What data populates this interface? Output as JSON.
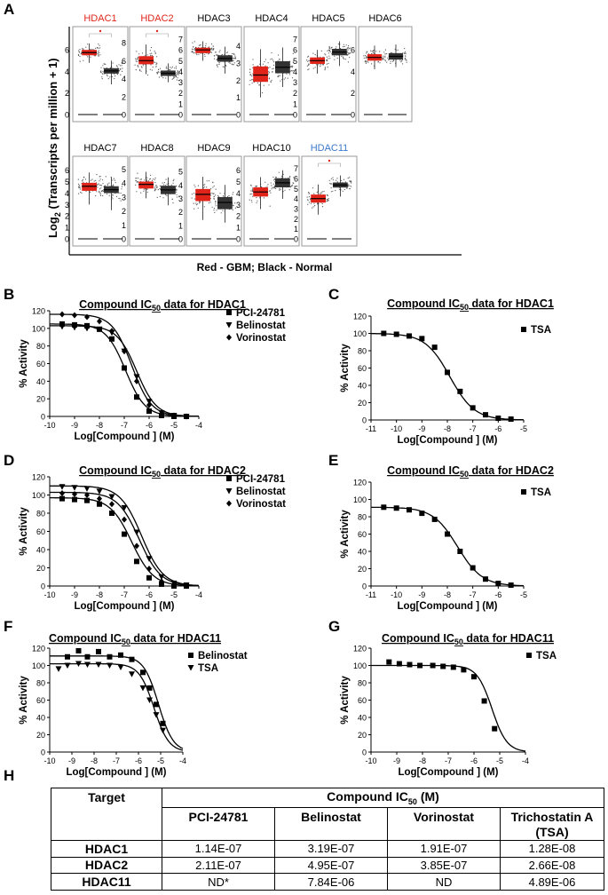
{
  "panel_letters": [
    "A",
    "B",
    "C",
    "D",
    "E",
    "F",
    "G",
    "H"
  ],
  "chart_data": [
    {
      "type": "box",
      "panel": "A",
      "ylabel_main": "Log",
      "ylabel_sub": "2",
      "ylabel_rest": " (Transcripts per million + 1)",
      "xlabel": "Red - GBM; Black - Normal",
      "series_colors": {
        "GBM": "#e0241a",
        "Normal": "#333333"
      },
      "genes": [
        {
          "name": "HDAC1",
          "label_color": "#e0241a",
          "significant": true,
          "ticks": [
            "6",
            "4",
            "2",
            "0"
          ],
          "ymax": 7.5,
          "gbm": {
            "q1": 5.5,
            "med": 5.75,
            "q3": 6.0,
            "wlo": 4.8,
            "whi": 6.6
          },
          "normal": {
            "q1": 3.8,
            "med": 4.05,
            "q3": 4.3,
            "wlo": 2.8,
            "whi": 5.0
          }
        },
        {
          "name": "HDAC2",
          "label_color": "#e0241a",
          "significant": true,
          "ticks": [
            "8",
            "6",
            "4",
            "2",
            "0"
          ],
          "ymax": 9.0,
          "gbm": {
            "q1": 5.6,
            "med": 6.0,
            "q3": 6.5,
            "wlo": 4.5,
            "whi": 7.8
          },
          "normal": {
            "q1": 4.3,
            "med": 4.6,
            "q3": 4.9,
            "wlo": 3.6,
            "whi": 5.7
          }
        },
        {
          "name": "HDAC3",
          "label_color": "#000000",
          "significant": false,
          "ticks": [
            "7",
            "6",
            "5",
            "4",
            "3",
            "2",
            "1",
            "0"
          ],
          "ymax": 7.5,
          "gbm": {
            "q1": 5.7,
            "med": 6.0,
            "q3": 6.2,
            "wlo": 5.0,
            "whi": 6.8
          },
          "normal": {
            "q1": 4.9,
            "med": 5.2,
            "q3": 5.5,
            "wlo": 3.8,
            "whi": 6.3
          }
        },
        {
          "name": "HDAC4",
          "label_color": "#000000",
          "significant": false,
          "ticks": [
            "4",
            "3",
            "2",
            "1",
            "0"
          ],
          "ymax": 4.7,
          "gbm": {
            "q1": 1.9,
            "med": 2.3,
            "q3": 2.8,
            "wlo": 1.0,
            "whi": 3.8
          },
          "normal": {
            "q1": 2.4,
            "med": 2.75,
            "q3": 3.1,
            "wlo": 1.6,
            "whi": 3.9
          }
        },
        {
          "name": "HDAC5",
          "label_color": "#000000",
          "significant": false,
          "ticks": [
            "7",
            "6",
            "5",
            "4",
            "3",
            "2",
            "1",
            "0"
          ],
          "ymax": 7.5,
          "gbm": {
            "q1": 4.7,
            "med": 5.0,
            "q3": 5.3,
            "wlo": 3.8,
            "whi": 6.0
          },
          "normal": {
            "q1": 5.5,
            "med": 5.8,
            "q3": 6.1,
            "wlo": 4.5,
            "whi": 6.8
          }
        },
        {
          "name": "HDAC6",
          "label_color": "#000000",
          "significant": false,
          "ticks": [
            "6",
            "4",
            "2",
            "0"
          ],
          "ymax": 7.5,
          "gbm": {
            "q1": 5.0,
            "med": 5.3,
            "q3": 5.6,
            "wlo": 4.2,
            "whi": 6.4
          },
          "normal": {
            "q1": 5.1,
            "med": 5.4,
            "q3": 5.7,
            "wlo": 4.4,
            "whi": 6.5
          }
        },
        {
          "name": "HDAC7",
          "label_color": "#000000",
          "significant": false,
          "ticks": [
            "6",
            "5",
            "4",
            "3",
            "2",
            "1",
            "0"
          ],
          "ymax": 6.6,
          "gbm": {
            "q1": 4.2,
            "med": 4.6,
            "q3": 4.9,
            "wlo": 3.0,
            "whi": 5.8
          },
          "normal": {
            "q1": 4.0,
            "med": 4.3,
            "q3": 4.6,
            "wlo": 2.5,
            "whi": 5.4
          }
        },
        {
          "name": "HDAC8",
          "label_color": "#000000",
          "significant": false,
          "ticks": [
            "5",
            "4",
            "3",
            "2",
            "1",
            "0"
          ],
          "ymax": 5.4,
          "gbm": {
            "q1": 3.6,
            "med": 3.9,
            "q3": 4.1,
            "wlo": 2.9,
            "whi": 4.8
          },
          "normal": {
            "q1": 3.2,
            "med": 3.5,
            "q3": 3.8,
            "wlo": 2.4,
            "whi": 4.4
          }
        },
        {
          "name": "HDAC9",
          "label_color": "#000000",
          "significant": false,
          "ticks": [
            "5",
            "4",
            "3",
            "2",
            "1",
            "0"
          ],
          "ymax": 5.6,
          "gbm": {
            "q1": 2.8,
            "med": 3.3,
            "q3": 3.7,
            "wlo": 1.4,
            "whi": 4.6
          },
          "normal": {
            "q1": 2.2,
            "med": 2.7,
            "q3": 3.1,
            "wlo": 1.2,
            "whi": 4.0
          }
        },
        {
          "name": "HDAC10",
          "label_color": "#000000",
          "significant": false,
          "ticks": [
            "6",
            "5",
            "4",
            "3",
            "2",
            "1",
            "0"
          ],
          "ymax": 6.6,
          "gbm": {
            "q1": 3.7,
            "med": 4.1,
            "q3": 4.5,
            "wlo": 2.6,
            "whi": 5.4
          },
          "normal": {
            "q1": 4.5,
            "med": 4.9,
            "q3": 5.3,
            "wlo": 3.5,
            "whi": 6.0
          }
        },
        {
          "name": "HDAC11",
          "label_color": "#3a78c9",
          "significant": true,
          "ticks": [
            "7",
            "6",
            "5",
            "4",
            "3",
            "2",
            "1",
            "0"
          ],
          "ymax": 7.5,
          "gbm": {
            "q1": 3.6,
            "med": 4.0,
            "q3": 4.4,
            "wlo": 2.4,
            "whi": 5.4
          },
          "normal": {
            "q1": 5.1,
            "med": 5.35,
            "q3": 5.6,
            "wlo": 4.2,
            "whi": 6.3
          }
        }
      ]
    },
    {
      "type": "line",
      "panel": "B",
      "title_pre": "Compound IC",
      "title_sub": "50",
      "title_post": " data for HDAC1",
      "xlabel": "Log[Compound  ] (M)",
      "ylabel": "% Activity",
      "xlim": [
        -10,
        -4
      ],
      "ylim": [
        0,
        120
      ],
      "xticks": [
        "-10",
        "-9",
        "-8",
        "-7",
        "-6",
        "-5",
        "-4"
      ],
      "yticks": [
        "0",
        "20",
        "40",
        "60",
        "80",
        "100",
        "120"
      ],
      "series": [
        {
          "name": "PCI-24781",
          "marker": "square",
          "top": 105,
          "bottom": 0,
          "ic50": -6.95,
          "hill": 1.1,
          "x": [
            -9.5,
            -9,
            -8.5,
            -8,
            -7.5,
            -7,
            -6.5,
            -6,
            -5.5,
            -5,
            -4.5
          ],
          "y": [
            105,
            104,
            103,
            99,
            88,
            55,
            22,
            6,
            1,
            0,
            0
          ]
        },
        {
          "name": "Belinostat",
          "marker": "triangle-down",
          "top": 103,
          "bottom": 0,
          "ic50": -6.5,
          "hill": 1.1,
          "x": [
            -9.5,
            -9,
            -8.5,
            -8,
            -7.5,
            -7,
            -6.5,
            -6,
            -5.5,
            -5,
            -4.5
          ],
          "y": [
            102,
            101,
            100,
            99,
            95,
            74,
            45,
            17,
            4,
            1,
            0
          ]
        },
        {
          "name": "Vorinostat",
          "marker": "diamond",
          "top": 116,
          "bottom": 0,
          "ic50": -6.7,
          "hill": 1.1,
          "x": [
            -9.5,
            -9,
            -8.5,
            -8,
            -7.5,
            -7,
            -6.5,
            -6,
            -5.5,
            -5,
            -4.5
          ],
          "y": [
            116,
            115,
            113,
            108,
            97,
            74,
            40,
            13,
            3,
            1,
            0
          ]
        }
      ]
    },
    {
      "type": "line",
      "panel": "C",
      "title_pre": "Compound IC",
      "title_sub": "50",
      "title_post": " data for HDAC1",
      "xlabel": "Log[Compound  ] (M)",
      "ylabel": "% Activity",
      "xlim": [
        -11,
        -5
      ],
      "ylim": [
        0,
        120
      ],
      "xticks": [
        "-11",
        "-10",
        "-9",
        "-8",
        "-7",
        "-6",
        "-5"
      ],
      "yticks": [
        "0",
        "20",
        "40",
        "60",
        "80",
        "100",
        "120"
      ],
      "series": [
        {
          "name": "TSA",
          "marker": "square",
          "top": 100,
          "bottom": 0,
          "ic50": -7.9,
          "hill": 0.9,
          "x": [
            -10.5,
            -10,
            -9.5,
            -9,
            -8.5,
            -8,
            -7.5,
            -7,
            -6.5,
            -6,
            -5.5
          ],
          "y": [
            100,
            99,
            97,
            94,
            84,
            55,
            33,
            14,
            6,
            2,
            1
          ]
        }
      ]
    },
    {
      "type": "line",
      "panel": "D",
      "title_pre": "Compound IC",
      "title_sub": "50",
      "title_post": " data for HDAC2",
      "xlabel": "Log[Compound  ] (M)",
      "ylabel": "% Activity",
      "xlim": [
        -10,
        -4
      ],
      "ylim": [
        0,
        120
      ],
      "xticks": [
        "-10",
        "-9",
        "-8",
        "-7",
        "-6",
        "-5",
        "-4"
      ],
      "yticks": [
        "0",
        "20",
        "40",
        "60",
        "80",
        "100",
        "120"
      ],
      "series": [
        {
          "name": "PCI-24781",
          "marker": "square",
          "top": 97,
          "bottom": 0,
          "ic50": -6.7,
          "hill": 1.0,
          "x": [
            -9.5,
            -9,
            -8.5,
            -8,
            -7.5,
            -7,
            -6.5,
            -6,
            -5.5,
            -5,
            -4.5
          ],
          "y": [
            96,
            95,
            94,
            90,
            80,
            57,
            27,
            9,
            2,
            0,
            0
          ]
        },
        {
          "name": "Belinostat",
          "marker": "triangle-down",
          "top": 110,
          "bottom": 0,
          "ic50": -6.3,
          "hill": 1.0,
          "x": [
            -9.5,
            -9,
            -8.5,
            -8,
            -7.5,
            -7,
            -6.5,
            -6,
            -5.5,
            -5,
            -4.5
          ],
          "y": [
            109,
            108,
            107,
            104,
            98,
            86,
            59,
            30,
            10,
            3,
            1
          ]
        },
        {
          "name": "Vorinostat",
          "marker": "diamond",
          "top": 103,
          "bottom": 0,
          "ic50": -6.4,
          "hill": 1.0,
          "x": [
            -9.5,
            -9,
            -8.5,
            -8,
            -7.5,
            -7,
            -6.5,
            -6,
            -5.5,
            -5,
            -4.5
          ],
          "y": [
            102,
            101,
            100,
            96,
            90,
            73,
            44,
            19,
            5,
            1,
            0
          ]
        }
      ]
    },
    {
      "type": "line",
      "panel": "E",
      "title_pre": "Compound IC",
      "title_sub": "50",
      "title_post": " data for HDAC2",
      "xlabel": "Log[Compound  ] (M)",
      "ylabel": "% Activity",
      "xlim": [
        -11,
        -5
      ],
      "ylim": [
        0,
        120
      ],
      "xticks": [
        "-11",
        "-10",
        "-9",
        "-8",
        "-7",
        "-6",
        "-5"
      ],
      "yticks": [
        "0",
        "20",
        "40",
        "60",
        "80",
        "100",
        "120"
      ],
      "series": [
        {
          "name": "TSA",
          "marker": "square",
          "top": 91,
          "bottom": 0,
          "ic50": -7.6,
          "hill": 0.9,
          "x": [
            -10.5,
            -10,
            -9.5,
            -9,
            -8.5,
            -8,
            -7.5,
            -7,
            -6.5,
            -6,
            -5.5
          ],
          "y": [
            91,
            90,
            88,
            84,
            77,
            60,
            40,
            21,
            8,
            3,
            1
          ]
        }
      ]
    },
    {
      "type": "line",
      "panel": "F",
      "title_pre": "Compound IC",
      "title_sub": "50",
      "title_post": " data for HDAC11",
      "xlabel": "Log[Compound  ] (M)",
      "ylabel": "% Activity",
      "xlim": [
        -10,
        -4
      ],
      "ylim": [
        0,
        120
      ],
      "xticks": [
        "-10",
        "-9",
        "-8",
        "-7",
        "-6",
        "-5",
        "-4"
      ],
      "yticks": [
        "0",
        "20",
        "40",
        "60",
        "80",
        "100",
        "120"
      ],
      "series": [
        {
          "name": "Belinostat",
          "marker": "square",
          "top": 111,
          "bottom": 0,
          "ic50": -5.1,
          "hill": 1.3,
          "x": [
            -9.2,
            -8.7,
            -8.3,
            -7.8,
            -7.3,
            -6.8,
            -6.3,
            -5.8,
            -5.5,
            -5.2,
            -4.9
          ],
          "y": [
            110,
            117,
            110,
            116,
            110,
            112,
            107,
            92,
            74,
            55,
            33
          ]
        },
        {
          "name": "TSA",
          "marker": "triangle-down",
          "top": 102,
          "bottom": 0,
          "ic50": -5.3,
          "hill": 1.3,
          "x": [
            -9.6,
            -9.2,
            -8.7,
            -8.3,
            -7.8,
            -7.3,
            -6.8,
            -6.3,
            -5.8,
            -5.5,
            -5.2,
            -4.9
          ],
          "y": [
            96,
            100,
            102,
            101,
            101,
            100,
            98,
            90,
            74,
            60,
            43,
            25
          ]
        }
      ]
    },
    {
      "type": "line",
      "panel": "G",
      "title_pre": "Compound IC",
      "title_sub": "50",
      "title_post": " data for HDAC11",
      "xlabel": "Log[Compound  ] (M)",
      "ylabel": "% Activity",
      "xlim": [
        -10,
        -4
      ],
      "ylim": [
        0,
        120
      ],
      "xticks": [
        "-10",
        "-9",
        "-8",
        "-7",
        "-6",
        "-5",
        "-4"
      ],
      "yticks": [
        "0",
        "20",
        "40",
        "60",
        "80",
        "100",
        "120"
      ],
      "series": [
        {
          "name": "TSA",
          "marker": "square",
          "top": 100,
          "bottom": 0,
          "ic50": -5.3,
          "hill": 1.5,
          "x": [
            -9.3,
            -8.9,
            -8.5,
            -8.1,
            -7.6,
            -7.2,
            -6.8,
            -6.4,
            -6.0,
            -5.6,
            -5.2
          ],
          "y": [
            104,
            102,
            101,
            100,
            100,
            99,
            98,
            95,
            87,
            59,
            27
          ]
        }
      ]
    }
  ],
  "table": {
    "target_header": "Target",
    "compound_header_pre": "Compound IC",
    "compound_header_sub": "50",
    "compound_header_post": " (M)",
    "columns": [
      "PCI-24781",
      "Belinostat",
      "Vorinostat",
      "Trichostatin A"
    ],
    "columns_note": "(TSA)",
    "rows": [
      {
        "target": "HDAC1",
        "values": [
          "1.14E-07",
          "3.19E-07",
          "1.91E-07",
          "1.28E-08"
        ]
      },
      {
        "target": "HDAC2",
        "values": [
          "2.11E-07",
          "4.95E-07",
          "3.85E-07",
          "2.66E-08"
        ]
      },
      {
        "target": "HDAC11",
        "values": [
          "ND*",
          "7.84E-06",
          "ND",
          "4.89E-06"
        ]
      }
    ]
  }
}
